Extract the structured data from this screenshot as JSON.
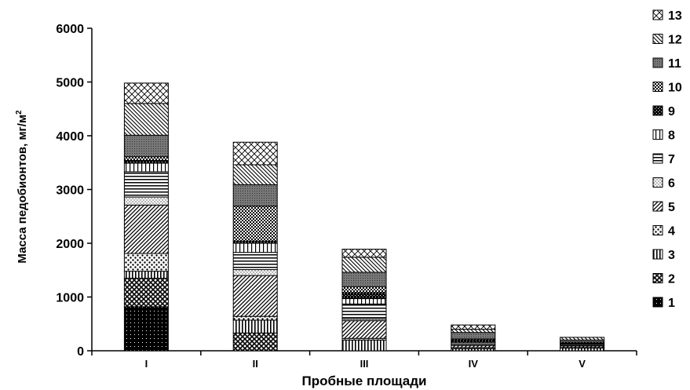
{
  "chart_data": {
    "type": "bar",
    "stacked": true,
    "xlabel": "Пробные площади",
    "ylabel_main": "Масса педобионтов, мг/м",
    "ylabel_sup": "2",
    "ylim": [
      0,
      6000
    ],
    "yticks": [
      "0",
      "1000",
      "2000",
      "3000",
      "4000",
      "5000",
      "6000"
    ],
    "yticks_values": [
      0,
      1000,
      2000,
      3000,
      4000,
      5000,
      6000
    ],
    "grid": false,
    "legend_position": "right",
    "categories": [
      "I",
      "II",
      "III",
      "IV",
      "V"
    ],
    "series": [
      {
        "name": "1",
        "values": [
          820,
          0,
          0,
          0,
          0
        ]
      },
      {
        "name": "2",
        "values": [
          530,
          330,
          0,
          0,
          0
        ]
      },
      {
        "name": "3",
        "values": [
          130,
          240,
          200,
          40,
          50
        ]
      },
      {
        "name": "4",
        "values": [
          330,
          70,
          30,
          20,
          10
        ]
      },
      {
        "name": "5",
        "values": [
          900,
          760,
          330,
          40,
          30
        ]
      },
      {
        "name": "6",
        "values": [
          150,
          110,
          30,
          20,
          10
        ]
      },
      {
        "name": "7",
        "values": [
          470,
          320,
          280,
          30,
          20
        ]
      },
      {
        "name": "8",
        "values": [
          160,
          170,
          100,
          20,
          10
        ]
      },
      {
        "name": "9",
        "values": [
          50,
          40,
          110,
          30,
          10
        ]
      },
      {
        "name": "10",
        "values": [
          70,
          650,
          110,
          20,
          20
        ]
      },
      {
        "name": "11",
        "values": [
          400,
          400,
          270,
          120,
          40
        ]
      },
      {
        "name": "12",
        "values": [
          590,
          370,
          280,
          60,
          50
        ]
      },
      {
        "name": "13",
        "values": [
          380,
          420,
          150,
          80,
          0
        ]
      }
    ]
  }
}
